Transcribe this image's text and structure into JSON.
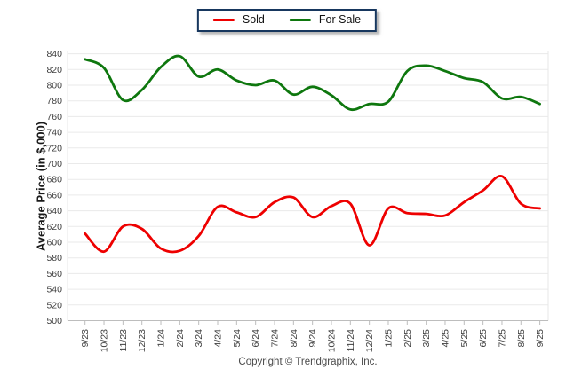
{
  "legend": {
    "items": [
      {
        "label": "Sold",
        "color": "#ee0000"
      },
      {
        "label": "For Sale",
        "color": "#0e770e"
      }
    ],
    "border_color": "#17375e"
  },
  "chart_data": {
    "type": "line",
    "title": "",
    "ylabel": "Average Price (in $,000)",
    "xlabel": "",
    "categories": [
      "9/23",
      "10/23",
      "11/23",
      "12/23",
      "1/24",
      "2/24",
      "3/24",
      "4/24",
      "5/24",
      "6/24",
      "7/24",
      "8/24",
      "9/24",
      "10/24",
      "11/24",
      "12/24",
      "1/25",
      "2/25",
      "3/25",
      "4/25",
      "5/25",
      "6/25",
      "7/25",
      "8/25",
      "9/25"
    ],
    "series": [
      {
        "name": "Sold",
        "color": "#ee0000",
        "values": [
          611,
          588,
          620,
          617,
          592,
          589,
          608,
          645,
          638,
          632,
          651,
          657,
          632,
          646,
          649,
          596,
          643,
          637,
          636,
          634,
          651,
          666,
          684,
          649,
          643
        ]
      },
      {
        "name": "For Sale",
        "color": "#0e770e",
        "values": [
          833,
          822,
          781,
          794,
          823,
          837,
          811,
          820,
          806,
          800,
          806,
          788,
          798,
          787,
          769,
          776,
          779,
          818,
          825,
          818,
          809,
          804,
          783,
          785,
          776
        ]
      }
    ],
    "ylim": [
      500,
      840
    ],
    "ytick_step": 20,
    "yticks": [
      500,
      520,
      540,
      560,
      580,
      600,
      620,
      640,
      660,
      680,
      700,
      720,
      740,
      760,
      780,
      800,
      820,
      840
    ],
    "grid": true,
    "legend_position": "top-center",
    "line_smoothing": "spline"
  },
  "footer": {
    "copyright": "Copyright © Trendgraphix, Inc."
  }
}
